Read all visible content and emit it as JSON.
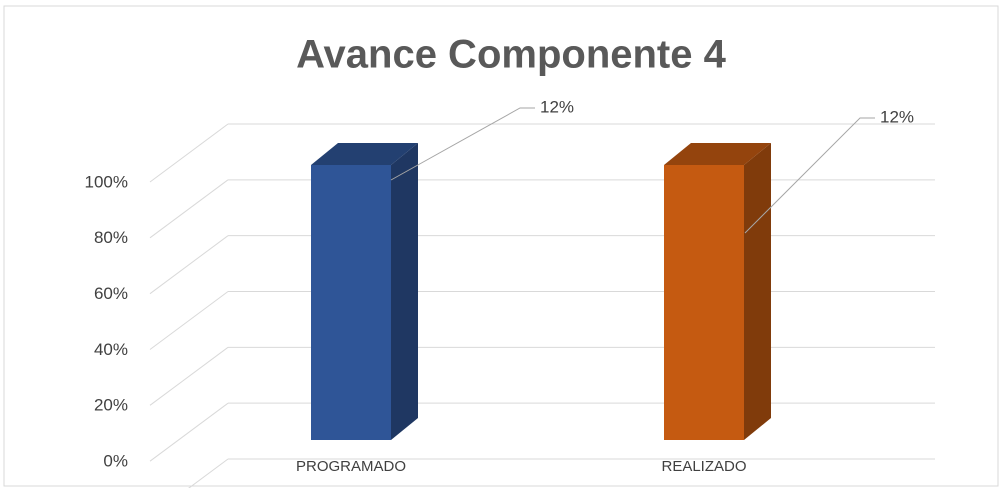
{
  "chart_data": {
    "type": "bar3d",
    "title": "Avance Componente 4",
    "categories": [
      "PROGRAMADO",
      "REALIZADO"
    ],
    "series": [
      {
        "values": [
          100,
          100
        ],
        "colors": [
          "#2f5597",
          "#c55a11"
        ]
      }
    ],
    "annotations": [
      "12%",
      "12%"
    ],
    "ylim": [
      0,
      120
    ],
    "yticks": [
      {
        "value": 0,
        "label": "0%"
      },
      {
        "value": 20,
        "label": "20%"
      },
      {
        "value": 40,
        "label": "40%"
      },
      {
        "value": 60,
        "label": "60%"
      },
      {
        "value": 80,
        "label": "80%"
      },
      {
        "value": 100,
        "label": "100%"
      }
    ],
    "grid": true
  }
}
